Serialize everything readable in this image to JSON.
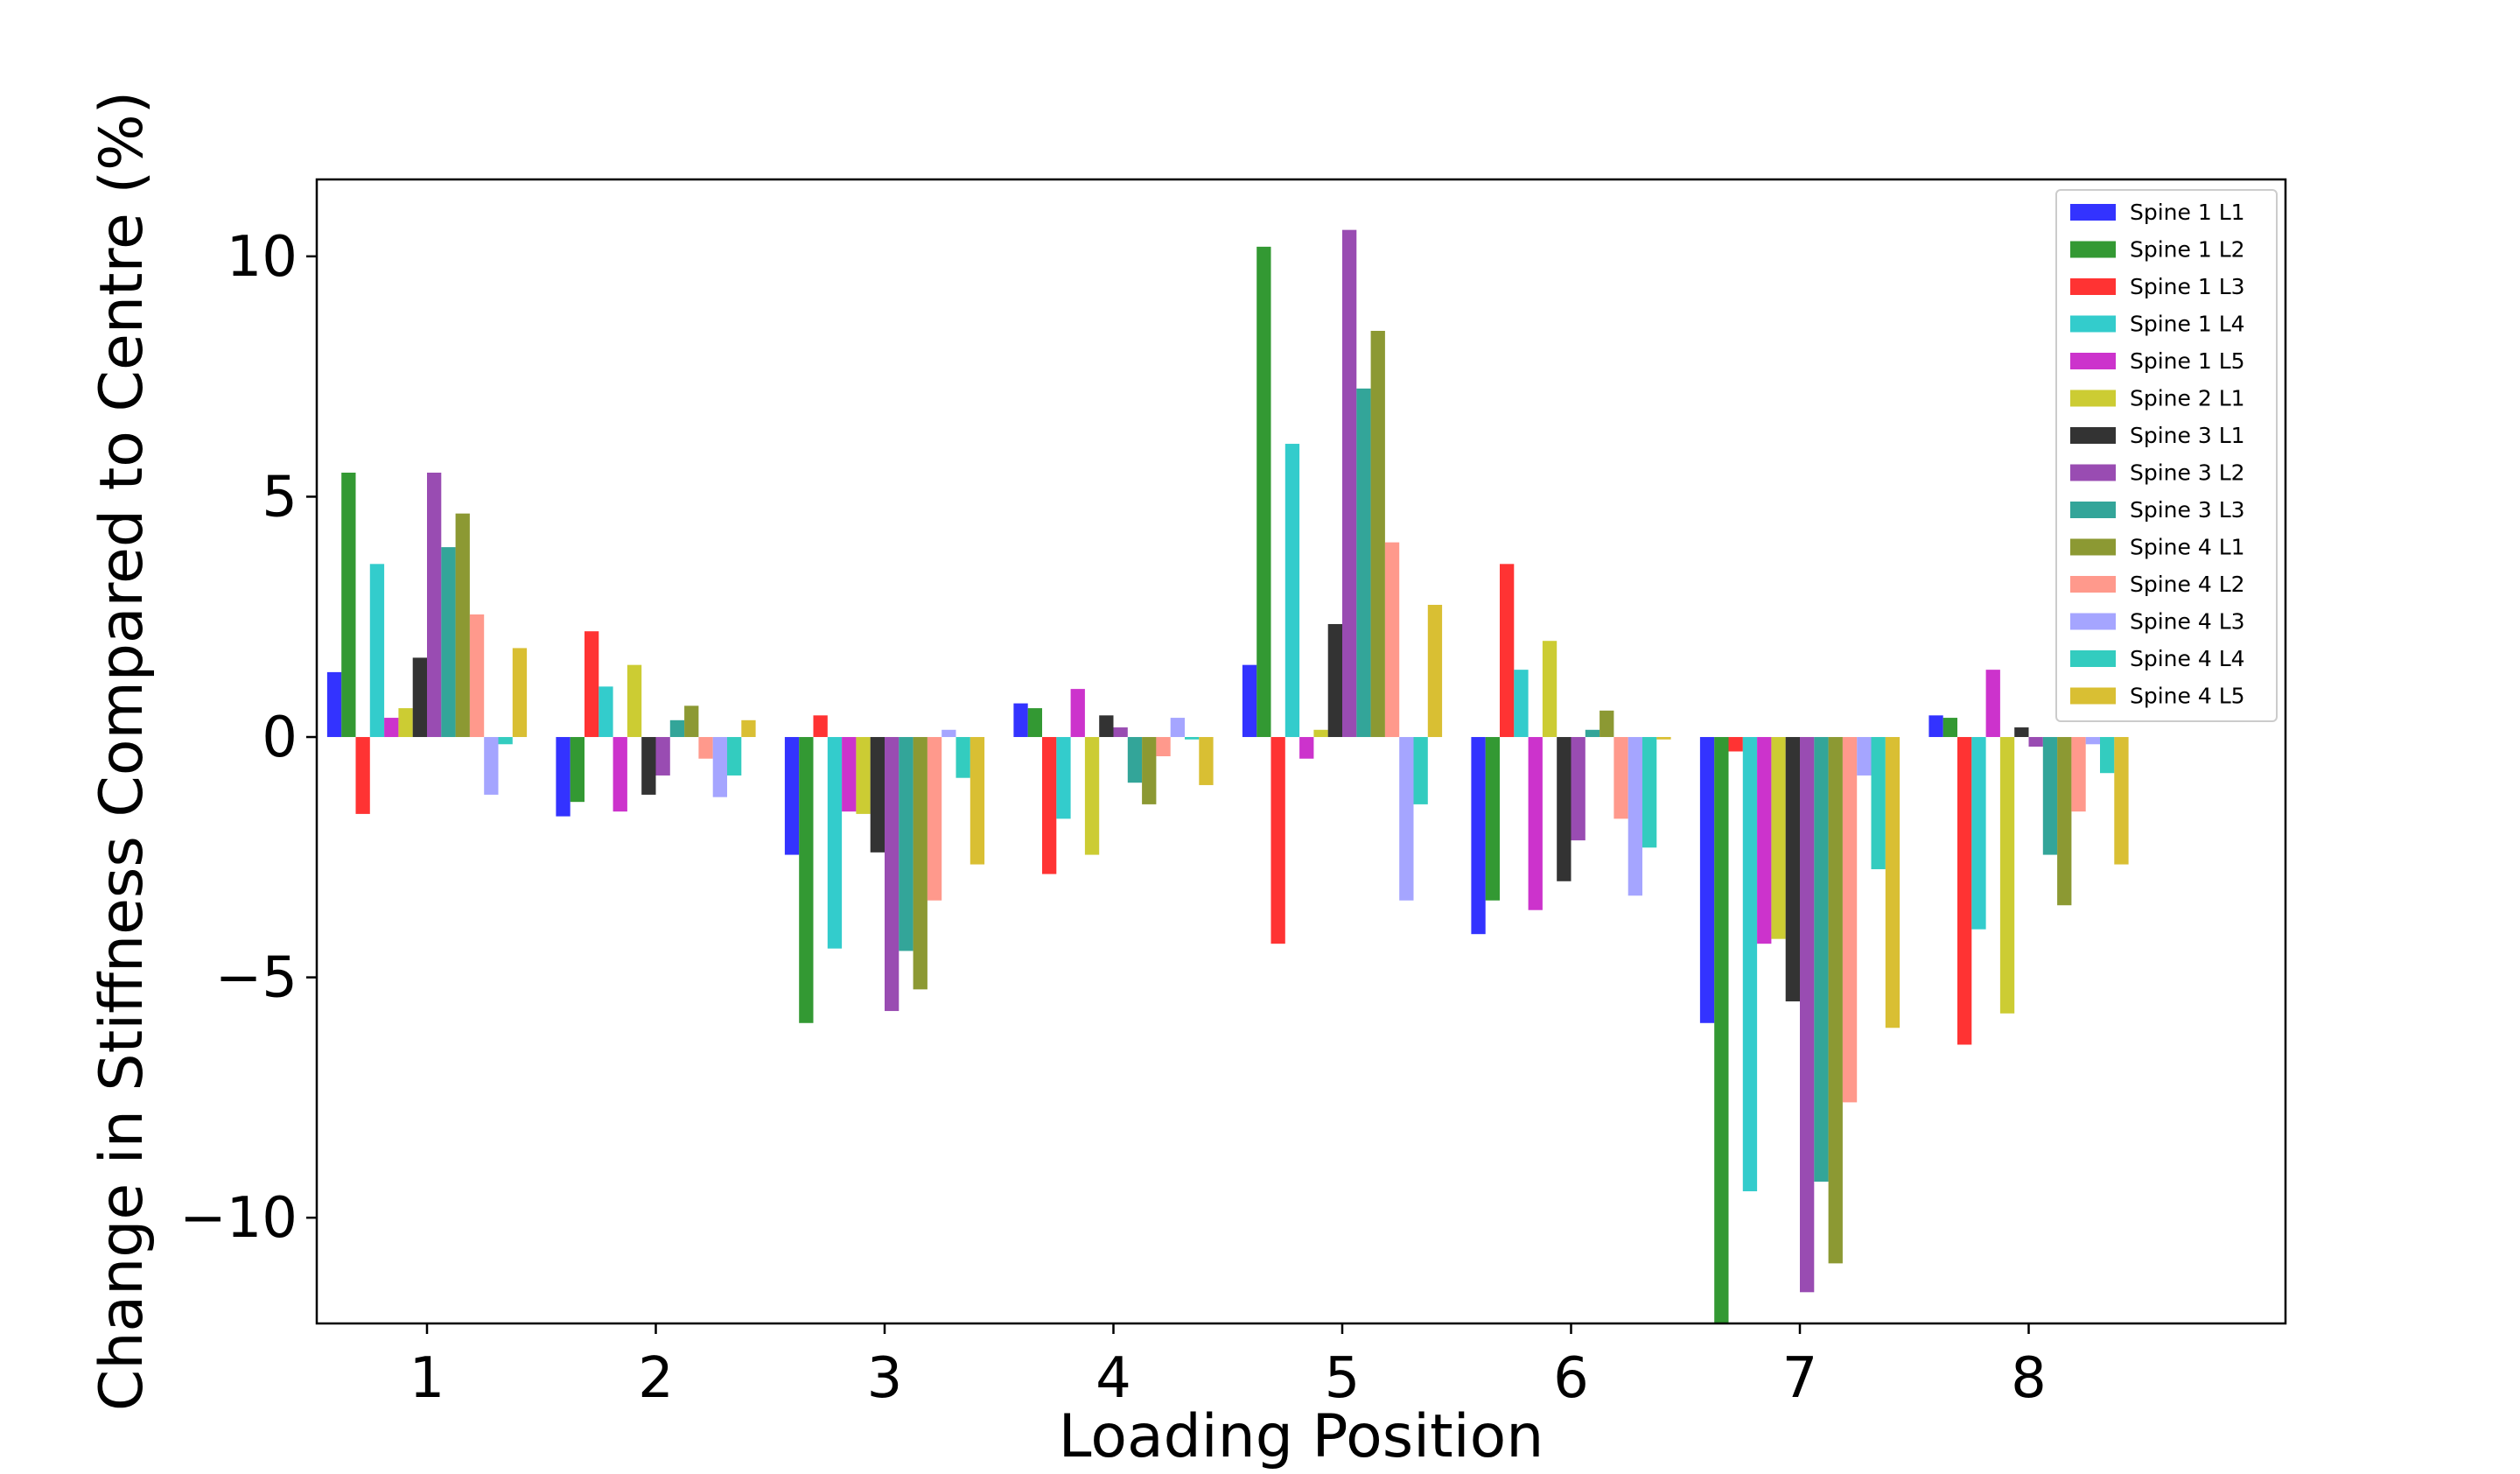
{
  "chart_data": {
    "type": "bar",
    "title": "",
    "xlabel": "Loading Position",
    "ylabel": "Change in Stiffness Compared to Centre (%)",
    "categories": [
      "1",
      "2",
      "3",
      "4",
      "5",
      "6",
      "7",
      "8"
    ],
    "yticks": [
      10,
      5,
      0,
      -5,
      -10
    ],
    "ytick_labels": [
      "10",
      "5",
      "0",
      "−5",
      "−10"
    ],
    "ylim": [
      -12.2,
      11.6
    ],
    "legend_position": "top-right",
    "grid": false,
    "series": [
      {
        "name": "Spine 1 L1",
        "color": "#0000ff",
        "values": [
          1.35,
          -1.65,
          -2.45,
          0.7,
          1.5,
          -4.1,
          -5.95,
          0.45
        ]
      },
      {
        "name": "Spine 1 L2",
        "color": "#008000",
        "values": [
          5.5,
          -1.35,
          -5.95,
          0.6,
          10.2,
          -3.4,
          -12.2,
          0.4
        ]
      },
      {
        "name": "Spine 1 L3",
        "color": "#ff0000",
        "values": [
          -1.6,
          2.2,
          0.45,
          -2.85,
          -4.3,
          3.6,
          -0.3,
          -6.4
        ]
      },
      {
        "name": "Spine 1 L4",
        "color": "#00bfbf",
        "values": [
          3.6,
          1.05,
          -4.4,
          -1.7,
          6.1,
          1.4,
          -9.45,
          -4.0
        ]
      },
      {
        "name": "Spine 1 L5",
        "color": "#bf00bf",
        "values": [
          0.4,
          -1.55,
          -1.55,
          1.0,
          -0.45,
          -3.6,
          -4.3,
          1.4
        ]
      },
      {
        "name": "Spine 2 L1",
        "color": "#bfbf00",
        "values": [
          0.6,
          1.5,
          -1.6,
          -2.45,
          0.15,
          2.0,
          -4.2,
          -5.75
        ]
      },
      {
        "name": "Spine 3 L1",
        "color": "#000000",
        "values": [
          1.65,
          -1.2,
          -2.4,
          0.45,
          2.35,
          -3.0,
          -5.5,
          0.2
        ]
      },
      {
        "name": "Spine 3 L2",
        "color": "#7f1f9f",
        "values": [
          5.5,
          -0.8,
          -5.7,
          0.2,
          10.55,
          -2.15,
          -11.55,
          -0.2
        ]
      },
      {
        "name": "Spine 3 L3",
        "color": "#008f7f",
        "values": [
          3.95,
          0.35,
          -4.45,
          -0.95,
          7.25,
          0.15,
          -9.25,
          -2.45
        ]
      },
      {
        "name": "Spine 4 L1",
        "color": "#6f7f00",
        "values": [
          4.65,
          0.65,
          -5.25,
          -1.4,
          8.45,
          0.55,
          -10.95,
          -3.5
        ]
      },
      {
        "name": "Spine 4 L2",
        "color": "#ff7f6f",
        "values": [
          2.55,
          -0.45,
          -3.4,
          -0.4,
          4.05,
          -1.7,
          -7.6,
          -1.55
        ]
      },
      {
        "name": "Spine 4 L3",
        "color": "#8f8fff",
        "values": [
          -1.2,
          -1.25,
          0.15,
          0.4,
          -3.4,
          -3.3,
          -0.8,
          -0.15
        ]
      },
      {
        "name": "Spine 4 L4",
        "color": "#00bfaf",
        "values": [
          -0.15,
          -0.8,
          -0.85,
          -0.05,
          -1.4,
          -2.3,
          -2.75,
          -0.75
        ]
      },
      {
        "name": "Spine 4 L5",
        "color": "#cfaf00",
        "values": [
          1.85,
          0.35,
          -2.65,
          -1.0,
          2.75,
          -0.05,
          -6.05,
          -2.65
        ]
      }
    ]
  }
}
